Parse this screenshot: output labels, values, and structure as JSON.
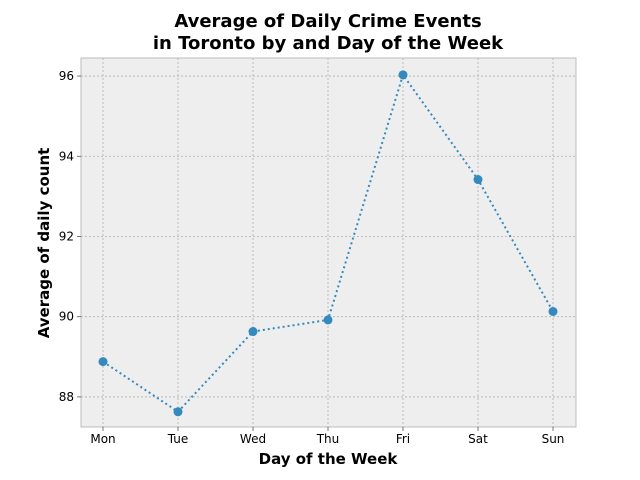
{
  "chart_data": {
    "type": "line",
    "title": [
      "Average of Daily Crime Events",
      "in Toronto by and Day of the Week"
    ],
    "xlabel": "Day of the Week",
    "ylabel": "Average of daily count",
    "categories": [
      "Mon",
      "Tue",
      "Wed",
      "Thu",
      "Fri",
      "Sat",
      "Sun"
    ],
    "series": [
      {
        "values": [
          88.88,
          87.63,
          89.63,
          89.92,
          96.03,
          93.42,
          90.13
        ],
        "color": "#348abd",
        "line_style": "dotted",
        "marker": "circle"
      }
    ],
    "ylim": [
      87.25,
      96.45
    ],
    "yticks": [
      88,
      90,
      92,
      94,
      96
    ],
    "grid": true,
    "legend": "none",
    "colors": {
      "plot_background": "#eeeeee",
      "grid": "#b0b0b0",
      "frame": "#bcbcbc"
    }
  }
}
